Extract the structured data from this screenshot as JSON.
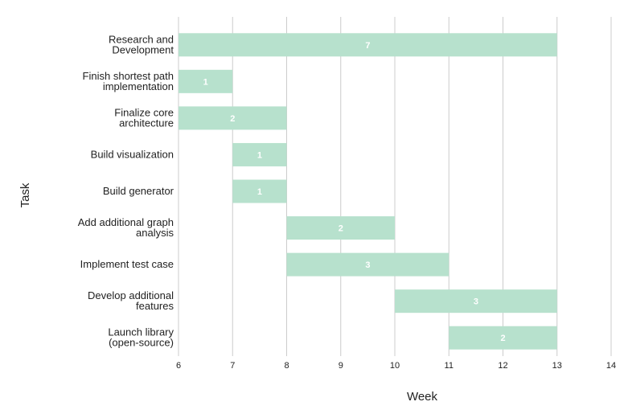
{
  "chart_data": {
    "type": "bar",
    "orientation": "horizontal-range",
    "xlabel": "Week",
    "ylabel": "Task",
    "xlim": [
      6,
      14
    ],
    "x_ticks": [
      "6",
      "7",
      "8",
      "9",
      "10",
      "11",
      "12",
      "13",
      "14"
    ],
    "grid": true,
    "bar_color": "#b7e1cd",
    "tasks": [
      {
        "label": [
          "Research and",
          "Development"
        ],
        "start": 6,
        "end": 13,
        "value": "7"
      },
      {
        "label": [
          "Finish shortest path",
          "implementation"
        ],
        "start": 6,
        "end": 7,
        "value": "1"
      },
      {
        "label": [
          "Finalize core",
          "architecture"
        ],
        "start": 6,
        "end": 8,
        "value": "2"
      },
      {
        "label": [
          "Build visualization"
        ],
        "start": 7,
        "end": 8,
        "value": "1"
      },
      {
        "label": [
          "Build generator"
        ],
        "start": 7,
        "end": 8,
        "value": "1"
      },
      {
        "label": [
          "Add additional graph",
          "analysis"
        ],
        "start": 8,
        "end": 10,
        "value": "2"
      },
      {
        "label": [
          "Implement test case"
        ],
        "start": 8,
        "end": 11,
        "value": "3"
      },
      {
        "label": [
          "Develop additional",
          "features"
        ],
        "start": 10,
        "end": 13,
        "value": "3"
      },
      {
        "label": [
          "Launch library",
          "(open-source)"
        ],
        "start": 11,
        "end": 13,
        "value": "2"
      }
    ]
  }
}
